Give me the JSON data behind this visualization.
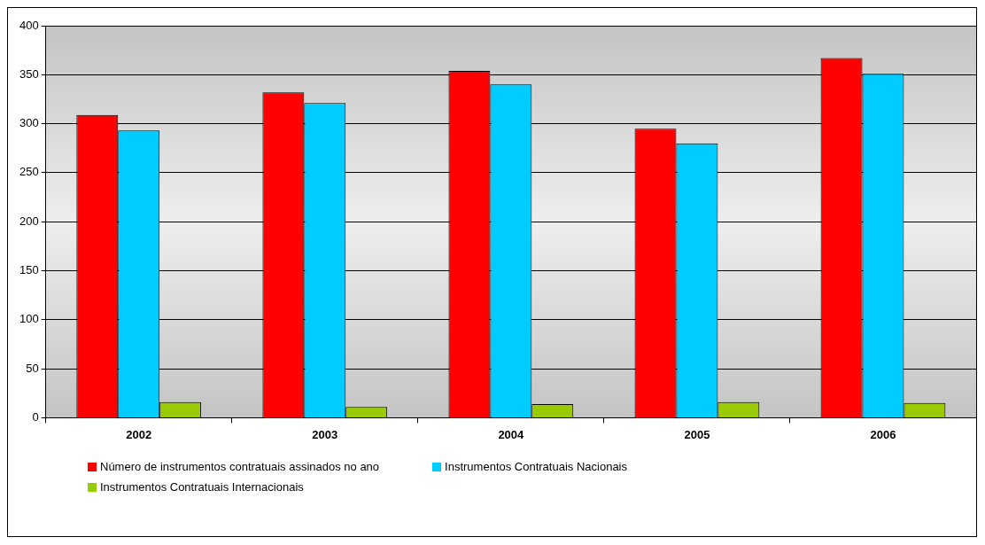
{
  "chart_data": {
    "type": "bar",
    "categories": [
      "2002",
      "2003",
      "2004",
      "2005",
      "2006"
    ],
    "series": [
      {
        "name": "Número de instrumentos contratuais assinados no ano",
        "color": "#ff0000",
        "values": [
          309,
          332,
          354,
          295,
          367
        ]
      },
      {
        "name": "Instrumentos Contratuais Nacionais",
        "color": "#00ccff",
        "values": [
          293,
          321,
          340,
          280,
          351
        ]
      },
      {
        "name": "Instrumentos Contratuais Internacionais",
        "color": "#99cc00",
        "values": [
          16,
          11,
          14,
          16,
          15
        ]
      }
    ],
    "ylim": [
      0,
      400
    ],
    "yticks": [
      0,
      50,
      100,
      150,
      200,
      250,
      300,
      350,
      400
    ],
    "grid": "y",
    "legend": "bottom left"
  }
}
